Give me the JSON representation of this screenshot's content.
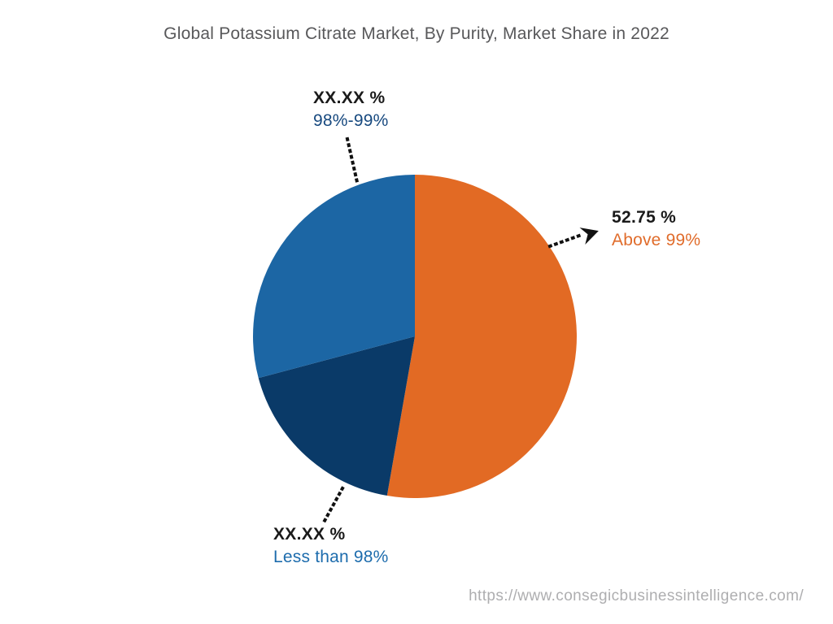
{
  "title": {
    "text": "Global Potassium Citrate Market, By Purity, Market Share in 2022",
    "color": "#58585a"
  },
  "watermark": {
    "text": "https://www.consegicbusinessintelligence.com/",
    "color": "#aeaeb0"
  },
  "chart_data": {
    "type": "pie",
    "title": "Global Potassium Citrate Market, By Purity, Market Share in 2022",
    "start_angle_deg": 0,
    "direction": "clockwise",
    "legend": "none",
    "value_text_color": "#1a1a1a",
    "slices": [
      {
        "label": "Above 99%",
        "value_label": "52.75 %",
        "pct": 52.75,
        "pct_is_estimated": false,
        "color": "#e26a24",
        "label_color": "#e06c2b"
      },
      {
        "label": "Less than 98%",
        "value_label": "XX.XX %",
        "pct": 18.1,
        "pct_is_estimated": true,
        "color": "#0a3a68",
        "label_color": "#1d6cad"
      },
      {
        "label": "98%-99%",
        "value_label": "XX.XX %",
        "pct": 29.15,
        "pct_is_estimated": true,
        "color": "#1c66a4",
        "label_color": "#17497f"
      }
    ]
  }
}
